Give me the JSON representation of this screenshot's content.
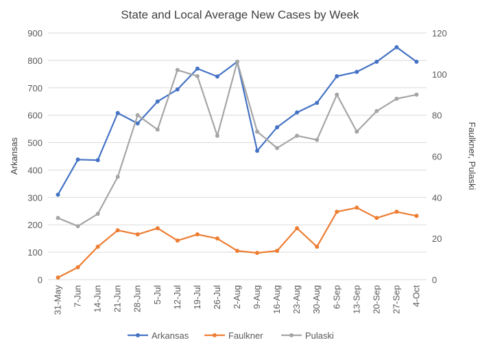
{
  "chart_data": {
    "type": "line",
    "title": "State and Local Average New Cases by Week",
    "ylabel_left": "Arkansas",
    "ylabel_right": "Faulkner, Pulaski",
    "ylim_left": [
      0,
      900
    ],
    "yticks_left": [
      0,
      100,
      200,
      300,
      400,
      500,
      600,
      700,
      800,
      900
    ],
    "ylim_right": [
      0,
      120
    ],
    "yticks_right": [
      0,
      20,
      40,
      60,
      80,
      100,
      120
    ],
    "grid": true,
    "legend_position": "bottom",
    "categories": [
      "31-May",
      "7-Jun",
      "14-Jun",
      "21-Jun",
      "28-Jun",
      "5-Jul",
      "12-Jul",
      "19-Jul",
      "26-Jul",
      "2-Aug",
      "9-Aug",
      "16-Aug",
      "23-Aug",
      "30-Aug",
      "6-Sep",
      "13-Sep",
      "20-Sep",
      "27-Sep",
      "4-Oct"
    ],
    "series": [
      {
        "name": "Arkansas",
        "axis": "left",
        "color": "#4472c4",
        "values": [
          310,
          438,
          436,
          608,
          570,
          650,
          694,
          770,
          741,
          795,
          470,
          556,
          610,
          645,
          742,
          758,
          795,
          848,
          795
        ]
      },
      {
        "name": "Faulkner",
        "axis": "right",
        "color": "#ed7d31",
        "values": [
          1,
          6,
          16,
          24,
          22,
          25,
          19,
          22,
          20,
          14,
          13,
          14,
          25,
          16,
          33,
          35,
          30,
          33,
          31
        ]
      },
      {
        "name": "Pulaski",
        "axis": "right",
        "color": "#a5a5a5",
        "values": [
          30,
          26,
          32,
          50,
          80,
          73,
          102,
          99,
          70,
          106,
          72,
          64,
          70,
          68,
          90,
          72,
          82,
          88,
          90
        ]
      }
    ]
  }
}
